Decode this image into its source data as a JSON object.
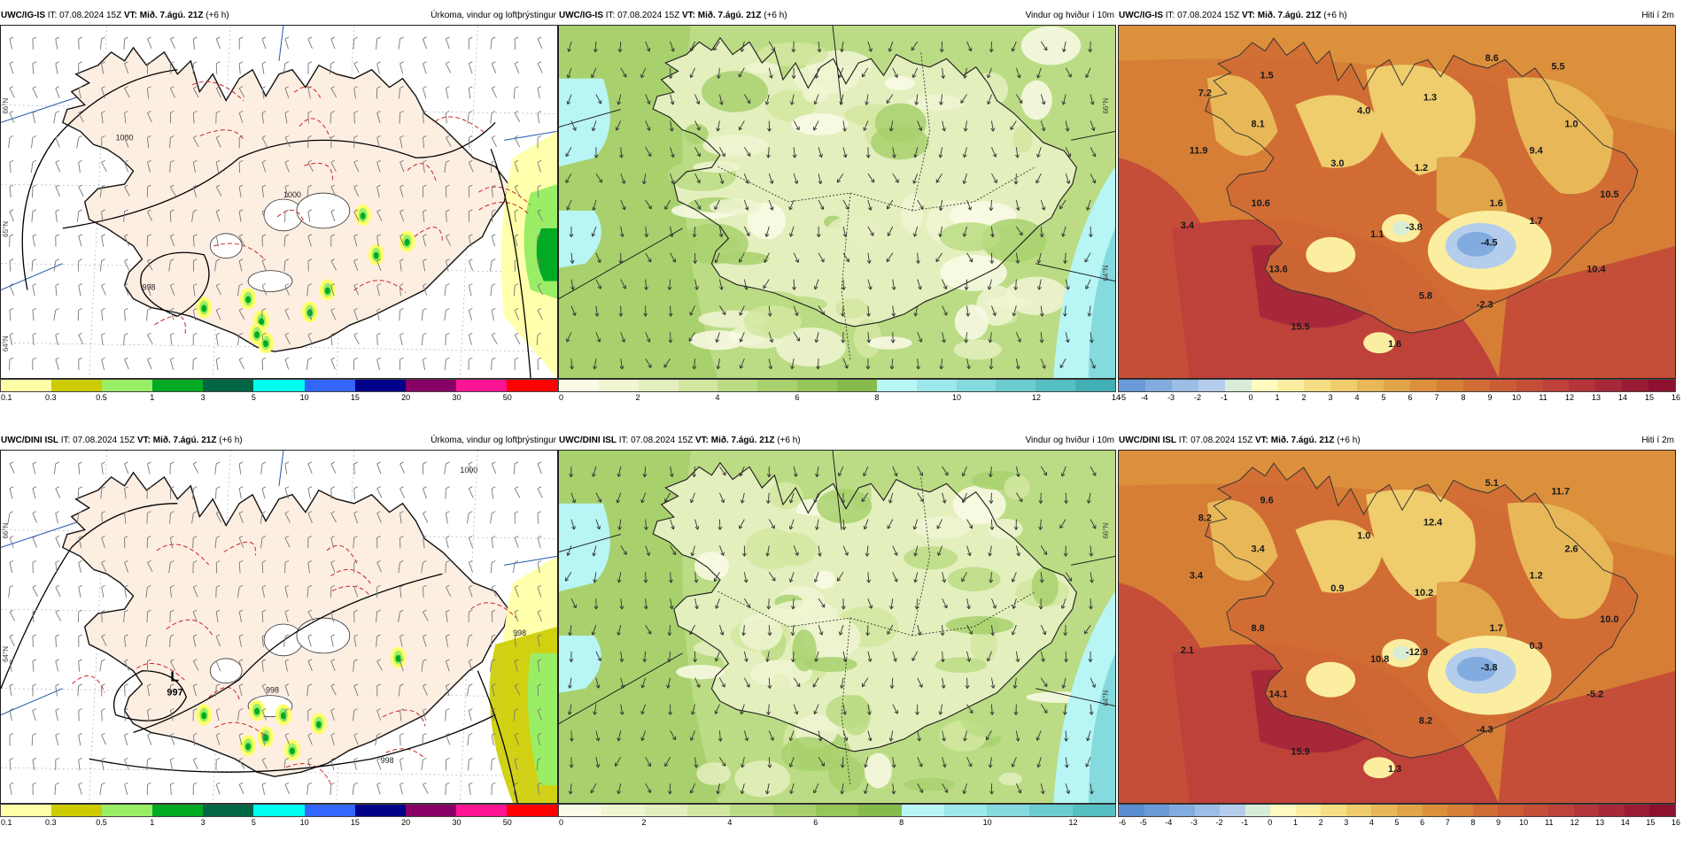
{
  "panels": [
    {
      "id": "igis-precip",
      "header": {
        "model": "UWC/IG-IS",
        "it": "IT: 07.08.2024 15Z",
        "vt_label": "VT:",
        "vt": "Mið. 7.ágú. 21Z",
        "offset": "(+6 h)",
        "title": "Úrkoma, vindur og loftþrýstingur"
      },
      "type": "precip",
      "colorbar": {
        "colors": [
          "#ffffa8",
          "#cccc00",
          "#99ee66",
          "#00aa22",
          "#006644",
          "#00ffee",
          "#3366ff",
          "#000088",
          "#880066",
          "#ff1493",
          "#ff0000"
        ],
        "ticks": [
          "0.1",
          "0.3",
          "0.5",
          "1",
          "3",
          "5",
          "10",
          "15",
          "20",
          "30",
          "50"
        ]
      },
      "isobar_labels": [
        "1000",
        "1000",
        "998"
      ],
      "pressure_center": null,
      "lat_labels": [
        "66°N",
        "65°N",
        "64°N"
      ]
    },
    {
      "id": "igis-wind",
      "header": {
        "model": "UWC/IG-IS",
        "it": "IT: 07.08.2024 15Z",
        "vt_label": "VT:",
        "vt": "Mið. 7.ágú. 21Z",
        "offset": "(+6 h)",
        "title": "Vindur og hviður í 10m"
      },
      "type": "wind",
      "colorbar": {
        "colors": [
          "#fafae6",
          "#f0f5d2",
          "#e4efbe",
          "#d2e7a0",
          "#bbdc84",
          "#a8d16e",
          "#96c55a",
          "#86bb4c",
          "#b8f5f5",
          "#9ce8ea",
          "#84dadd",
          "#6ccdd0",
          "#56bfc2",
          "#40b0b4"
        ],
        "ticks": [
          "0",
          "2",
          "4",
          "6",
          "8",
          "10",
          "12",
          "14"
        ]
      },
      "lat_labels": [
        "66°N",
        "64°N"
      ]
    },
    {
      "id": "igis-temp",
      "header": {
        "model": "UWC/IG-IS",
        "it": "IT: 07.08.2024 15Z",
        "vt_label": "VT:",
        "vt": "Mið. 7.ágú. 21Z",
        "offset": "(+6 h)",
        "title": "Hiti í 2m"
      },
      "type": "temp",
      "colorbar": {
        "colors": [
          "#6a9bd8",
          "#82acdf",
          "#9bbde6",
          "#b4cdec",
          "#d8ecd8",
          "#fffbc0",
          "#fbeea0",
          "#f5de84",
          "#efcc6c",
          "#e8b858",
          "#e2a448",
          "#dc903c",
          "#d67e36",
          "#d06c34",
          "#ca5c36",
          "#c44e38",
          "#be413a",
          "#b3353a",
          "#a72838",
          "#9a1c34",
          "#8e1030"
        ],
        "ticks": [
          "-5",
          "-4",
          "-3",
          "-2",
          "-1",
          "0",
          "1",
          "2",
          "3",
          "4",
          "5",
          "6",
          "7",
          "8",
          "9",
          "10",
          "11",
          "12",
          "13",
          "14",
          "15",
          "16"
        ]
      },
      "temp_labels": [
        "7.2",
        "1.5",
        "8.6",
        "5.5",
        "11.9",
        "8.1",
        "4.0",
        "1.3",
        "1.0",
        "3.0",
        "1.2",
        "9.4",
        "10.6",
        "1.6",
        "10.5",
        "3.4",
        "1.1",
        "-3.8",
        "1.7",
        "-4.5",
        "10.4",
        "13.6",
        "5.8",
        "-2.3",
        "15.5",
        "1.6"
      ]
    },
    {
      "id": "dini-precip",
      "header": {
        "model": "UWC/DINI ISL",
        "it": "IT: 07.08.2024 15Z",
        "vt_label": "VT:",
        "vt": "Mið. 7.ágú. 21Z",
        "offset": "(+6 h)",
        "title": "Úrkoma, vindur og loftþrýstingur"
      },
      "type": "precip",
      "colorbar": {
        "colors": [
          "#ffffa8",
          "#cccc00",
          "#99ee66",
          "#00aa22",
          "#006644",
          "#00ffee",
          "#3366ff",
          "#000088",
          "#880066",
          "#ff1493",
          "#ff0000"
        ],
        "ticks": [
          "0.1",
          "0.3",
          "0.5",
          "1",
          "3",
          "5",
          "10",
          "15",
          "20",
          "30",
          "50"
        ]
      },
      "isobar_labels": [
        "1000",
        "998",
        "998",
        "998"
      ],
      "pressure_center": {
        "letter": "L",
        "value": "997"
      },
      "lat_labels": [
        "66°N",
        "64°N"
      ]
    },
    {
      "id": "dini-wind",
      "header": {
        "model": "UWC/DINI ISL",
        "it": "IT: 07.08.2024 15Z",
        "vt_label": "VT:",
        "vt": "Mið. 7.ágú. 21Z",
        "offset": "(+6 h)",
        "title": "Vindur og hviður í 10m"
      },
      "type": "wind",
      "colorbar": {
        "colors": [
          "#fafae6",
          "#f0f5d2",
          "#e4efbe",
          "#d2e7a0",
          "#bbdc84",
          "#a8d16e",
          "#96c55a",
          "#86bb4c",
          "#b8f5f5",
          "#9ce8ea",
          "#84dadd",
          "#6ccdd0",
          "#56bfc2"
        ],
        "ticks": [
          "0",
          "2",
          "4",
          "6",
          "8",
          "10",
          "12"
        ]
      },
      "lat_labels": [
        "66°N",
        "64°N"
      ]
    },
    {
      "id": "dini-temp",
      "header": {
        "model": "UWC/DINI ISL",
        "it": "IT: 07.08.2024 15Z",
        "vt_label": "VT:",
        "vt": "Mið. 7.ágú. 21Z",
        "offset": "(+6 h)",
        "title": "Hiti í 2m"
      },
      "type": "temp",
      "colorbar": {
        "colors": [
          "#5a8ed2",
          "#6a9bd8",
          "#82acdf",
          "#9bbde6",
          "#b4cdec",
          "#d8ecd8",
          "#fffbc0",
          "#fbeea0",
          "#f5de84",
          "#efcc6c",
          "#e8b858",
          "#e2a448",
          "#dc903c",
          "#d67e36",
          "#d06c34",
          "#ca5c36",
          "#c44e38",
          "#be413a",
          "#b3353a",
          "#a72838",
          "#9a1c34",
          "#8e1030"
        ],
        "ticks": [
          "-6",
          "-5",
          "-4",
          "-3",
          "-2",
          "-1",
          "0",
          "1",
          "2",
          "3",
          "4",
          "5",
          "6",
          "7",
          "8",
          "9",
          "10",
          "11",
          "12",
          "13",
          "14",
          "15",
          "16"
        ]
      },
      "temp_labels": [
        "8.2",
        "9.6",
        "5.1",
        "11.7",
        "3.4",
        "3.4",
        "1.0",
        "12.4",
        "2.6",
        "0.9",
        "10.2",
        "1.2",
        "8.8",
        "1.7",
        "10.0",
        "2.1",
        "10.8",
        "-12.9",
        "0.3",
        "-3.8",
        "-5.2",
        "14.1",
        "8.2",
        "-4.3",
        "15.9",
        "1.3"
      ]
    }
  ]
}
